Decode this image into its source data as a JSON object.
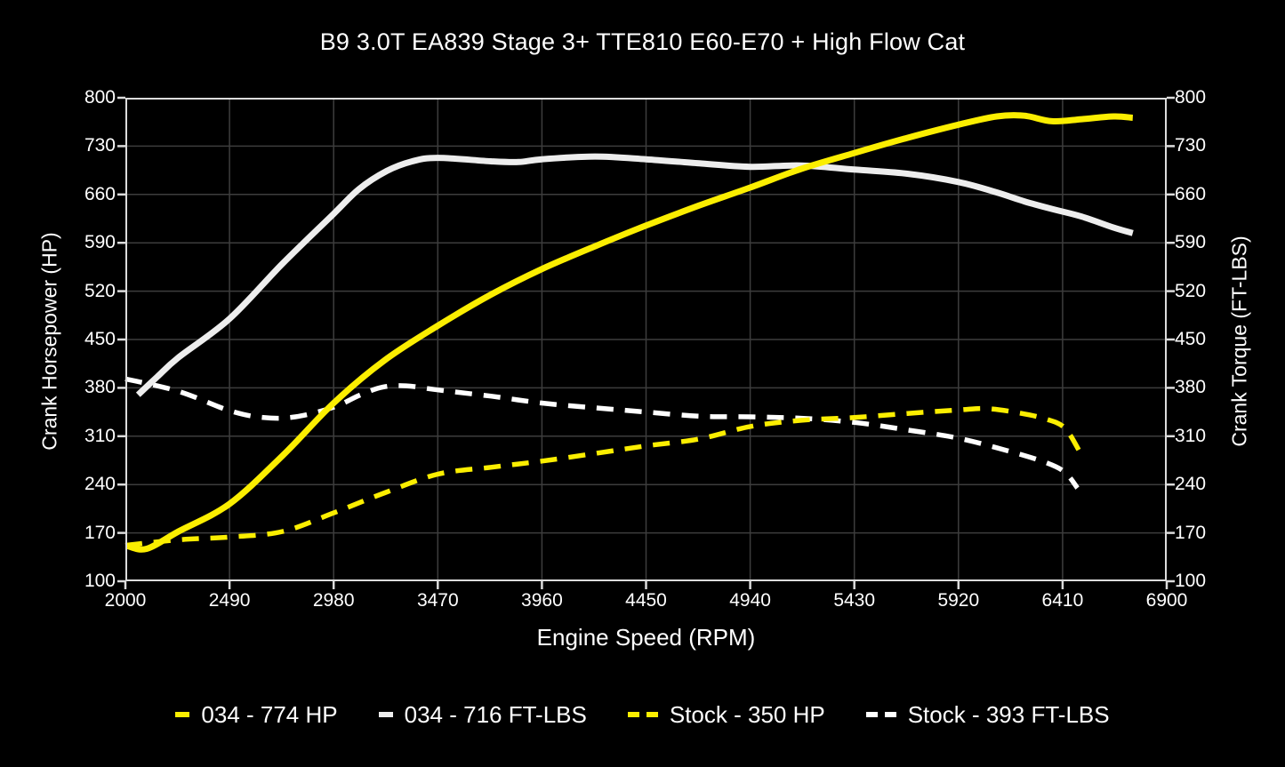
{
  "title": "B9 3.0T EA839 Stage 3+ TTE810 E60-E70 + High Flow Cat",
  "colors": {
    "background": "#000000",
    "text": "#ffffff",
    "grid": "#3d3d3d",
    "frame": "#dcdcdc",
    "accent_yellow": "#fbee00",
    "accent_white": "#ededed",
    "stock_white": "#ffffff"
  },
  "chart_data": {
    "type": "line",
    "title": "B9 3.0T EA839 Stage 3+ TTE810 E60-E70 + High Flow Cat",
    "xlabel": "Engine Speed (RPM)",
    "ylabel_left": "Crank Horsepower (HP)",
    "ylabel_right": "Crank Torque (FT-LBS)",
    "xlim": [
      2000,
      6900
    ],
    "ylim": [
      100,
      800
    ],
    "x_ticks": [
      2000,
      2490,
      2980,
      3470,
      3960,
      4450,
      4940,
      5430,
      5920,
      6410,
      6900
    ],
    "y_ticks": [
      100,
      170,
      240,
      310,
      380,
      450,
      520,
      590,
      660,
      730,
      800
    ],
    "grid": true,
    "legend_position": "bottom",
    "series": [
      {
        "name": "Stock - 393 FT-LBS",
        "axis": "right",
        "style": "dashed",
        "color": "#ffffff",
        "width": 5.5,
        "peak": 393,
        "x": [
          2000,
          2250,
          2490,
          2650,
          2800,
          2980,
          3100,
          3210,
          3320,
          3470,
          3720,
          3960,
          4210,
          4450,
          4700,
          4940,
          5180,
          5430,
          5680,
          5920,
          6150,
          6330,
          6420,
          6480
        ],
        "y": [
          393,
          375,
          347,
          337,
          338,
          352,
          369,
          381,
          383,
          377,
          368,
          358,
          351,
          345,
          339,
          338,
          336,
          330,
          319,
          307,
          289,
          272,
          258,
          235
        ]
      },
      {
        "name": "Stock - 350 HP",
        "axis": "left",
        "style": "dashed",
        "color": "#fbee00",
        "width": 5.5,
        "peak": 350,
        "x": [
          2000,
          2250,
          2490,
          2740,
          2980,
          3220,
          3470,
          3720,
          3960,
          4210,
          4450,
          4700,
          4940,
          5180,
          5430,
          5680,
          5920,
          6050,
          6200,
          6330,
          6420,
          6490
        ],
        "y": [
          152,
          160,
          164,
          172,
          199,
          228,
          255,
          265,
          274,
          285,
          296,
          306,
          324,
          333,
          337,
          343,
          348,
          350,
          344,
          335,
          322,
          288
        ]
      },
      {
        "name": "034 - 716 FT-LBS",
        "axis": "right",
        "style": "solid",
        "color": "#ededed",
        "width": 7,
        "peak": 716,
        "x": [
          2060,
          2150,
          2250,
          2490,
          2740,
          2980,
          3100,
          3230,
          3350,
          3470,
          3720,
          3850,
          3960,
          4210,
          4450,
          4700,
          4940,
          5180,
          5430,
          5680,
          5920,
          6100,
          6230,
          6360,
          6500,
          6650,
          6740
        ],
        "y": [
          370,
          396,
          424,
          480,
          560,
          632,
          668,
          694,
          708,
          713,
          708,
          707,
          711,
          715,
          711,
          705,
          700,
          702,
          696,
          690,
          678,
          663,
          650,
          639,
          628,
          612,
          604
        ]
      },
      {
        "name": "034 - 774 HP",
        "axis": "left",
        "style": "solid",
        "color": "#fbee00",
        "width": 7,
        "peak": 774,
        "x": [
          2010,
          2100,
          2250,
          2490,
          2740,
          2980,
          3220,
          3470,
          3720,
          3960,
          4210,
          4450,
          4700,
          4940,
          5180,
          5430,
          5680,
          5920,
          6100,
          6230,
          6360,
          6500,
          6650,
          6740
        ],
        "y": [
          151,
          147,
          172,
          212,
          282,
          358,
          420,
          470,
          515,
          552,
          585,
          615,
          644,
          670,
          697,
          720,
          742,
          761,
          773,
          774,
          766,
          769,
          773,
          771
        ]
      }
    ],
    "legend_order": [
      "034 - 774 HP",
      "034 - 716 FT-LBS",
      "Stock - 350 HP",
      "Stock - 393 FT-LBS"
    ]
  }
}
